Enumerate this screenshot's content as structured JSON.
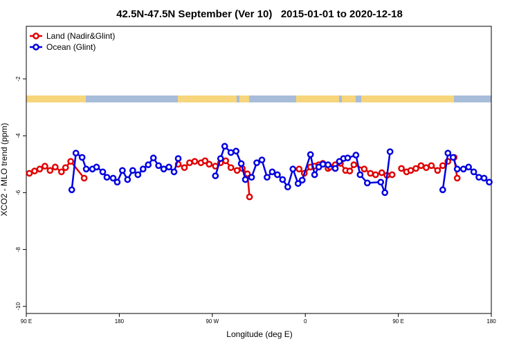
{
  "chart_data": {
    "type": "line",
    "title": "42.5N-47.5N September (Ver 10)   2015-01-01 to 2020-12-18",
    "x_label": "Longitude (deg E)",
    "y_label": "XCO2 - MLO trend (ppm)",
    "xlim": [
      90,
      540
    ],
    "xticks": [
      {
        "value": 90,
        "label": "90 E"
      },
      180,
      {
        "value": 270,
        "label": "90 W"
      },
      {
        "value": 360,
        "label": "0"
      },
      {
        "value": 450,
        "label": "90 E"
      },
      {
        "value": 540,
        "label": "180"
      }
    ],
    "ylim": [
      -10.25,
      -0.15
    ],
    "yticks": [
      -10,
      -8,
      -6,
      -4,
      -2
    ],
    "legend": "top-left",
    "series": [
      {
        "name": "Land (Nadir&Glint)",
        "color": "#e00000",
        "x": [
          93,
          98,
          103,
          108,
          113,
          118,
          124,
          128,
          133,
          146,
          null,
          237,
          243,
          248,
          253,
          259,
          263,
          267,
          273,
          278,
          283,
          288,
          294,
          299,
          304,
          306,
          null,
          354,
          359,
          365,
          369,
          373,
          377,
          382,
          384,
          389,
          394,
          399,
          403,
          407,
          417,
          423,
          428,
          434,
          439,
          444,
          null,
          453,
          458,
          462,
          467,
          472,
          477,
          482,
          488,
          493,
          498,
          504,
          507
        ],
        "values": [
          -5.32,
          -5.24,
          -5.17,
          -5.07,
          -5.22,
          -5.1,
          -5.27,
          -5.12,
          -4.9,
          -5.49,
          null,
          -5.0,
          -5.12,
          -4.95,
          -4.9,
          -4.95,
          -4.88,
          -5.0,
          -5.07,
          -4.95,
          -4.88,
          -5.12,
          -5.22,
          -5.15,
          -5.34,
          -6.15,
          null,
          -5.17,
          -5.32,
          -5.1,
          -5.07,
          -5.02,
          -4.97,
          -5.15,
          -5.1,
          -5.02,
          -4.97,
          -5.22,
          -5.24,
          -5.02,
          -5.17,
          -5.32,
          -5.37,
          -5.3,
          -5.39,
          -5.37,
          null,
          -5.15,
          -5.27,
          -5.22,
          -5.15,
          -5.05,
          -5.12,
          -5.05,
          -5.22,
          -5.05,
          -4.9,
          -4.76,
          -5.49
        ]
      },
      {
        "name": "Ocean (Glint)",
        "color": "#0000e0",
        "x": [
          134,
          138,
          144,
          148,
          154,
          158,
          164,
          168,
          174,
          178,
          183,
          188,
          193,
          198,
          203,
          208,
          213,
          218,
          223,
          228,
          233,
          237,
          null,
          273,
          278,
          282,
          288,
          293,
          298,
          302,
          308,
          313,
          318,
          323,
          328,
          333,
          338,
          343,
          348,
          353,
          357,
          365,
          369,
          373,
          377,
          382,
          389,
          393,
          397,
          401,
          409,
          413,
          420,
          433,
          437,
          442,
          null,
          493,
          498,
          503,
          507,
          513,
          518,
          523,
          528,
          533,
          538
        ],
        "values": [
          -5.9,
          -4.61,
          -4.76,
          -5.17,
          -5.17,
          -5.1,
          -5.27,
          -5.46,
          -5.49,
          -5.63,
          -5.22,
          -5.54,
          -5.22,
          -5.37,
          -5.17,
          -5.02,
          -4.78,
          -5.05,
          -5.17,
          -5.1,
          -5.27,
          -4.8,
          null,
          -5.41,
          -4.8,
          -4.37,
          -4.59,
          -4.54,
          -4.98,
          -5.54,
          -5.46,
          -4.95,
          -4.85,
          -5.46,
          -5.27,
          -5.37,
          -5.54,
          -5.8,
          -5.17,
          -5.68,
          -5.56,
          -4.66,
          -5.37,
          -5.1,
          -5.0,
          -5.02,
          -5.15,
          -4.9,
          -4.8,
          -4.78,
          -4.68,
          -5.37,
          -5.66,
          -5.63,
          -6.0,
          -4.56,
          null,
          -5.9,
          -4.61,
          -4.76,
          -5.17,
          -5.17,
          -5.1,
          -5.27,
          -5.46,
          -5.49,
          -5.63
        ]
      }
    ]
  }
}
